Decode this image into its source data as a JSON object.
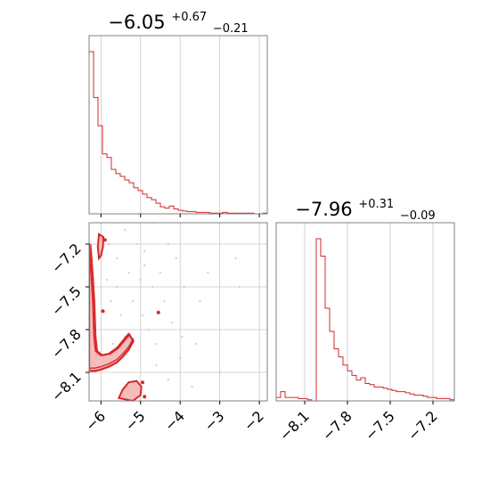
{
  "chart_data": [
    {
      "type": "corner",
      "colors": {
        "series": "#d62728",
        "axes": "#808080",
        "grid": "#c8c8c8"
      },
      "grid": true,
      "parameters": [
        {
          "title_value": "−6.05",
          "title_upper": "+0.67",
          "title_lower": "−0.21",
          "range": [
            -6.3,
            -1.8
          ],
          "ticks": [
            -6,
            -5,
            -4,
            -3,
            -2
          ],
          "tick_labels": [
            "−6",
            "−5",
            "−4",
            "−3",
            "−2"
          ]
        },
        {
          "title_value": "−7.96",
          "title_upper": "+0.31",
          "title_lower": "−0.09",
          "range": [
            -8.3,
            -7.05
          ],
          "ticks": [
            -8.1,
            -7.8,
            -7.5,
            -7.2
          ],
          "tick_labels": [
            "−8.1",
            "−7.8",
            "−7.5",
            "−7.2"
          ]
        }
      ],
      "hist_x": {
        "type": "histogram",
        "bin_edges_start": -6.3,
        "bin_width": 0.1125,
        "counts": [
          230,
          165,
          125,
          85,
          80,
          63,
          57,
          53,
          48,
          44,
          37,
          33,
          28,
          23,
          20,
          15,
          10,
          8,
          11,
          7,
          5,
          4,
          3,
          3,
          2,
          2,
          2,
          1,
          1,
          1,
          2,
          1,
          1,
          1,
          1,
          1,
          1,
          0,
          0,
          1,
          0
        ]
      },
      "hist_y": {
        "type": "histogram",
        "bin_edges_start": -8.3,
        "bin_width": 0.03125,
        "counts": [
          3,
          8,
          3,
          3,
          3,
          2,
          2,
          1,
          0,
          140,
          125,
          80,
          60,
          45,
          38,
          31,
          26,
          22,
          18,
          20,
          15,
          14,
          12,
          12,
          11,
          10,
          9,
          8,
          8,
          7,
          6,
          5,
          5,
          4,
          3,
          3,
          2,
          2,
          2,
          1,
          0
        ]
      },
      "contour_2d": {
        "type": "contour",
        "levels": 3,
        "band": {
          "lower_branch": [
            [
              -6.3,
              -8.09
            ],
            [
              -6.15,
              -8.09
            ],
            [
              -6.0,
              -8.08
            ],
            [
              -5.8,
              -8.06
            ],
            [
              -5.6,
              -8.03
            ],
            [
              -5.45,
              -7.99
            ],
            [
              -5.3,
              -7.94
            ],
            [
              -5.18,
              -7.88
            ]
          ],
          "upper_branch": [
            [
              -6.3,
              -7.2
            ],
            [
              -6.27,
              -7.3
            ],
            [
              -6.24,
              -7.42
            ],
            [
              -6.2,
              -7.6
            ],
            [
              -6.17,
              -7.85
            ],
            [
              -6.13,
              -7.95
            ],
            [
              -6.0,
              -7.98
            ],
            [
              -5.8,
              -7.97
            ],
            [
              -5.6,
              -7.93
            ],
            [
              -5.45,
              -7.88
            ],
            [
              -5.3,
              -7.83
            ]
          ]
        },
        "top_blob": [
          [
            -6.05,
            -7.13
          ],
          [
            -5.94,
            -7.15
          ],
          [
            -5.95,
            -7.22
          ],
          [
            -6.0,
            -7.28
          ],
          [
            -6.05,
            -7.3
          ],
          [
            -6.08,
            -7.22
          ]
        ],
        "bottom_blob": [
          [
            -5.55,
            -8.28
          ],
          [
            -5.45,
            -8.22
          ],
          [
            -5.3,
            -8.17
          ],
          [
            -5.1,
            -8.16
          ],
          [
            -4.98,
            -8.2
          ],
          [
            -5.0,
            -8.26
          ],
          [
            -5.2,
            -8.3
          ]
        ],
        "isolated_points": [
          [
            -5.9,
            -7.17
          ],
          [
            -5.95,
            -7.67
          ],
          [
            -4.55,
            -7.68
          ],
          [
            -4.95,
            -8.17
          ],
          [
            -4.9,
            -8.27
          ]
        ],
        "scatter": [
          [
            -5.8,
            -7.2
          ],
          [
            -5.6,
            -7.3
          ],
          [
            -5.4,
            -7.1
          ],
          [
            -5.3,
            -7.4
          ],
          [
            -5.1,
            -7.2
          ],
          [
            -4.9,
            -7.35
          ],
          [
            -4.7,
            -7.5
          ],
          [
            -5.2,
            -7.6
          ],
          [
            -5.5,
            -7.7
          ],
          [
            -4.8,
            -7.8
          ],
          [
            -4.4,
            -7.6
          ],
          [
            -4.6,
            -7.9
          ],
          [
            -4.2,
            -7.75
          ],
          [
            -5.6,
            -7.5
          ],
          [
            -5.0,
            -7.45
          ],
          [
            -4.7,
            -7.05
          ],
          [
            -4.3,
            -7.2
          ],
          [
            -3.9,
            -7.5
          ],
          [
            -3.6,
            -7.9
          ],
          [
            -4.0,
            -8.0
          ],
          [
            -4.6,
            -8.05
          ],
          [
            -4.3,
            -8.15
          ],
          [
            -3.7,
            -8.2
          ],
          [
            -5.7,
            -7.9
          ],
          [
            -5.4,
            -7.85
          ],
          [
            -4.95,
            -7.7
          ],
          [
            -3.3,
            -7.4
          ],
          [
            -2.6,
            -7.3
          ],
          [
            -2.5,
            -7.5
          ],
          [
            -3.0,
            -8.1
          ],
          [
            -5.2,
            -8.25
          ],
          [
            -4.9,
            -7.25
          ],
          [
            -5.65,
            -7.05
          ],
          [
            -5.85,
            -7.45
          ],
          [
            -4.5,
            -7.4
          ],
          [
            -3.95,
            -7.85
          ],
          [
            -3.5,
            -7.6
          ],
          [
            -4.1,
            -7.3
          ],
          [
            -5.35,
            -7.95
          ],
          [
            -5.75,
            -7.6
          ]
        ]
      }
    }
  ]
}
